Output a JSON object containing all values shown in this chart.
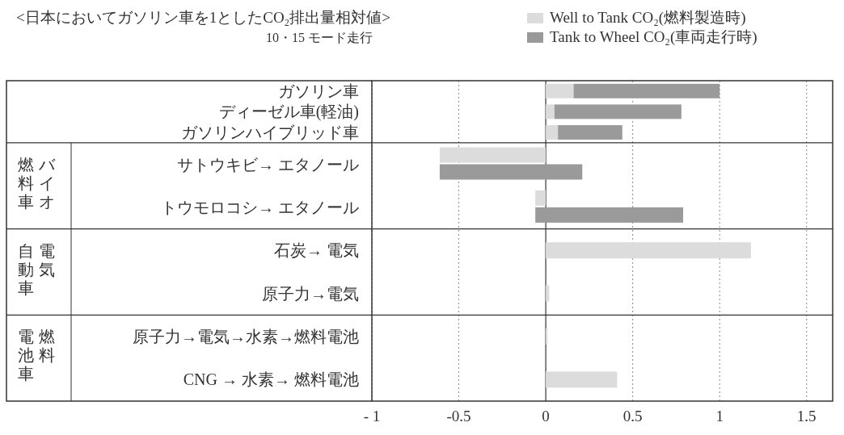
{
  "chart_data": {
    "type": "bar",
    "orientation": "horizontal",
    "title": "<日本においてガソリン車を1としたCO₂排出量相対値>",
    "subtitle": "10・15 モード走行",
    "categories": [
      "ガソリン車",
      "ディーゼル車(軽油)",
      "ガソリンハイブリッド車",
      "サトウキビ→ エタノール",
      "トウモロコシ→ エタノール",
      "石炭→ 電気",
      "原子力→電気",
      "原子力→電気→水素→燃料電池",
      "CNG → 水素→ 燃料電池"
    ],
    "series": [
      {
        "name": "Well to Tank CO₂(燃料製造時)",
        "color": "#dcdcdc",
        "values": [
          0.16,
          0.05,
          0.07,
          -0.61,
          -0.06,
          1.18,
          0.02,
          0.01,
          0.41
        ]
      },
      {
        "name": "Tank to Wheel CO₂(車両走行時)",
        "color": "#9a9a9a",
        "values": [
          0.84,
          0.73,
          0.37,
          0.82,
          0.85,
          null,
          null,
          null,
          null
        ],
        "base": [
          0.16,
          0.05,
          0.07,
          -0.61,
          -0.06,
          null,
          null,
          null,
          null
        ]
      }
    ],
    "xlim": [
      -1,
      1.65
    ],
    "xticks": [
      {
        "value": -1,
        "label": "- 1"
      },
      -0.5,
      0,
      0.5,
      1,
      1.5
    ],
    "grid": "x",
    "legend": "top right",
    "annotations": [
      "バイオ燃料車",
      "電気自動車",
      "燃料電池車"
    ]
  }
}
